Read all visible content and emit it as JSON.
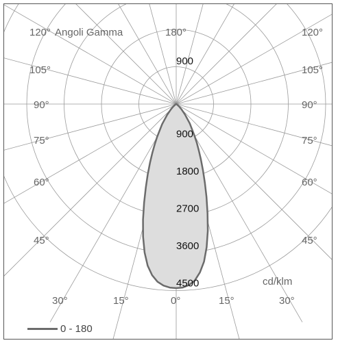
{
  "chart_data": {
    "type": "polar",
    "title": "Angoli Gamma",
    "unit": "cd/klm",
    "angle_labels": {
      "left": [
        "120°",
        "105°",
        "90°",
        "75°",
        "60°",
        "45°",
        "30°",
        "15°",
        "0°"
      ],
      "right": [
        "120°",
        "105°",
        "90°",
        "75°",
        "60°",
        "45°",
        "30°",
        "15°",
        "0°"
      ],
      "top": "180°"
    },
    "angle_label_values": {
      "left": [
        120,
        105,
        90,
        75,
        60,
        45,
        30,
        15,
        0
      ],
      "right": [
        120,
        105,
        90,
        75,
        60,
        45,
        30,
        15,
        0
      ]
    },
    "radial_ticks": [
      900,
      1800,
      2700,
      3600,
      4500
    ],
    "radial_tick_labels": [
      "900",
      "1800",
      "2700",
      "3600",
      "4500"
    ],
    "back_tick_label": "900",
    "rmax": 4500,
    "series": [
      {
        "name": "0 - 180",
        "color": "#6b6b6b",
        "fill": "#dddddd",
        "gamma": [
          0,
          2,
          4,
          6,
          8,
          10,
          12,
          14,
          16,
          18,
          20,
          22,
          24,
          26,
          28,
          30,
          35,
          40,
          45,
          50,
          60,
          90
        ],
        "intensity_right": [
          4440,
          4430,
          4380,
          4280,
          4100,
          3860,
          3530,
          3150,
          2740,
          2360,
          2020,
          1720,
          1460,
          1240,
          1050,
          880,
          570,
          330,
          180,
          90,
          20,
          0
        ],
        "intensity_left": [
          4440,
          4430,
          4390,
          4310,
          4170,
          3960,
          3660,
          3300,
          2900,
          2500,
          2140,
          1830,
          1550,
          1310,
          1100,
          920,
          590,
          340,
          180,
          90,
          20,
          0
        ]
      }
    ],
    "legend": {
      "label": "0 - 180",
      "position": "bottom-left"
    }
  }
}
